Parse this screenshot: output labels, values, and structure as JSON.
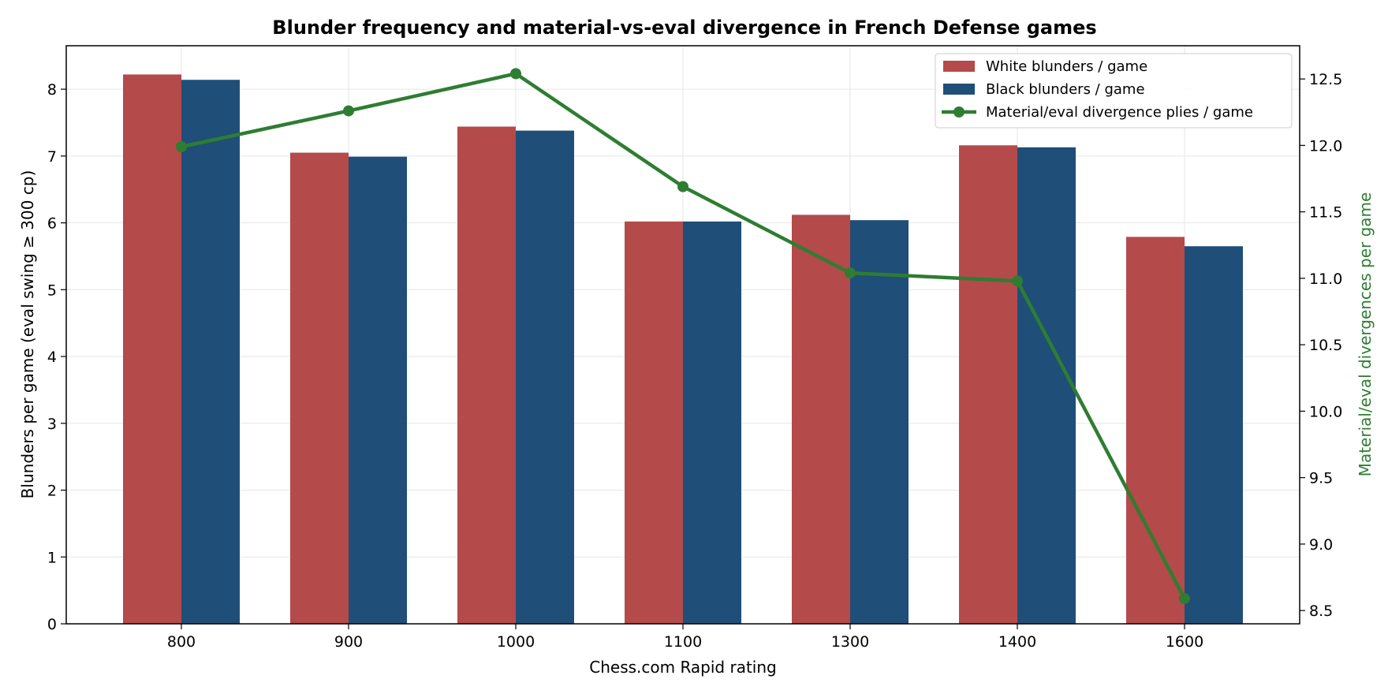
{
  "chart_data": {
    "type": "bar",
    "title": "Blunder frequency and material-vs-eval divergence in French Defense games",
    "xlabel": "Chess.com Rapid rating",
    "ylabel": "Blunders per game (eval swing ≥ 300 cp)",
    "y2label": "Material/eval divergences per game",
    "categories": [
      "800",
      "900",
      "1000",
      "1100",
      "1300",
      "1400",
      "1600"
    ],
    "ylim": [
      0,
      8.65
    ],
    "y2lim": [
      8.4,
      12.75
    ],
    "yticks": [
      0,
      1,
      2,
      3,
      4,
      5,
      6,
      7,
      8
    ],
    "y2ticks": [
      8.5,
      9.0,
      9.5,
      10.0,
      10.5,
      11.0,
      11.5,
      12.0,
      12.5
    ],
    "grid": true,
    "legend_position": "top-right",
    "series": [
      {
        "name": "White blunders / game",
        "type": "bar",
        "axis": "left",
        "color": "#b54a4a",
        "values": [
          8.22,
          7.05,
          7.44,
          6.02,
          6.12,
          7.16,
          5.79
        ]
      },
      {
        "name": "Black blunders / game",
        "type": "bar",
        "axis": "left",
        "color": "#1f4e79",
        "values": [
          8.14,
          6.99,
          7.38,
          6.02,
          6.04,
          7.13,
          5.65
        ]
      },
      {
        "name": "Material/eval divergence plies / game",
        "type": "line",
        "axis": "right",
        "color": "#2e7d32",
        "values": [
          11.99,
          12.26,
          12.54,
          11.69,
          11.04,
          10.98,
          8.59
        ]
      }
    ],
    "colors": {
      "y2_label": "#2e7d32",
      "grid": "#e6e6e6",
      "axis": "#000000"
    }
  }
}
